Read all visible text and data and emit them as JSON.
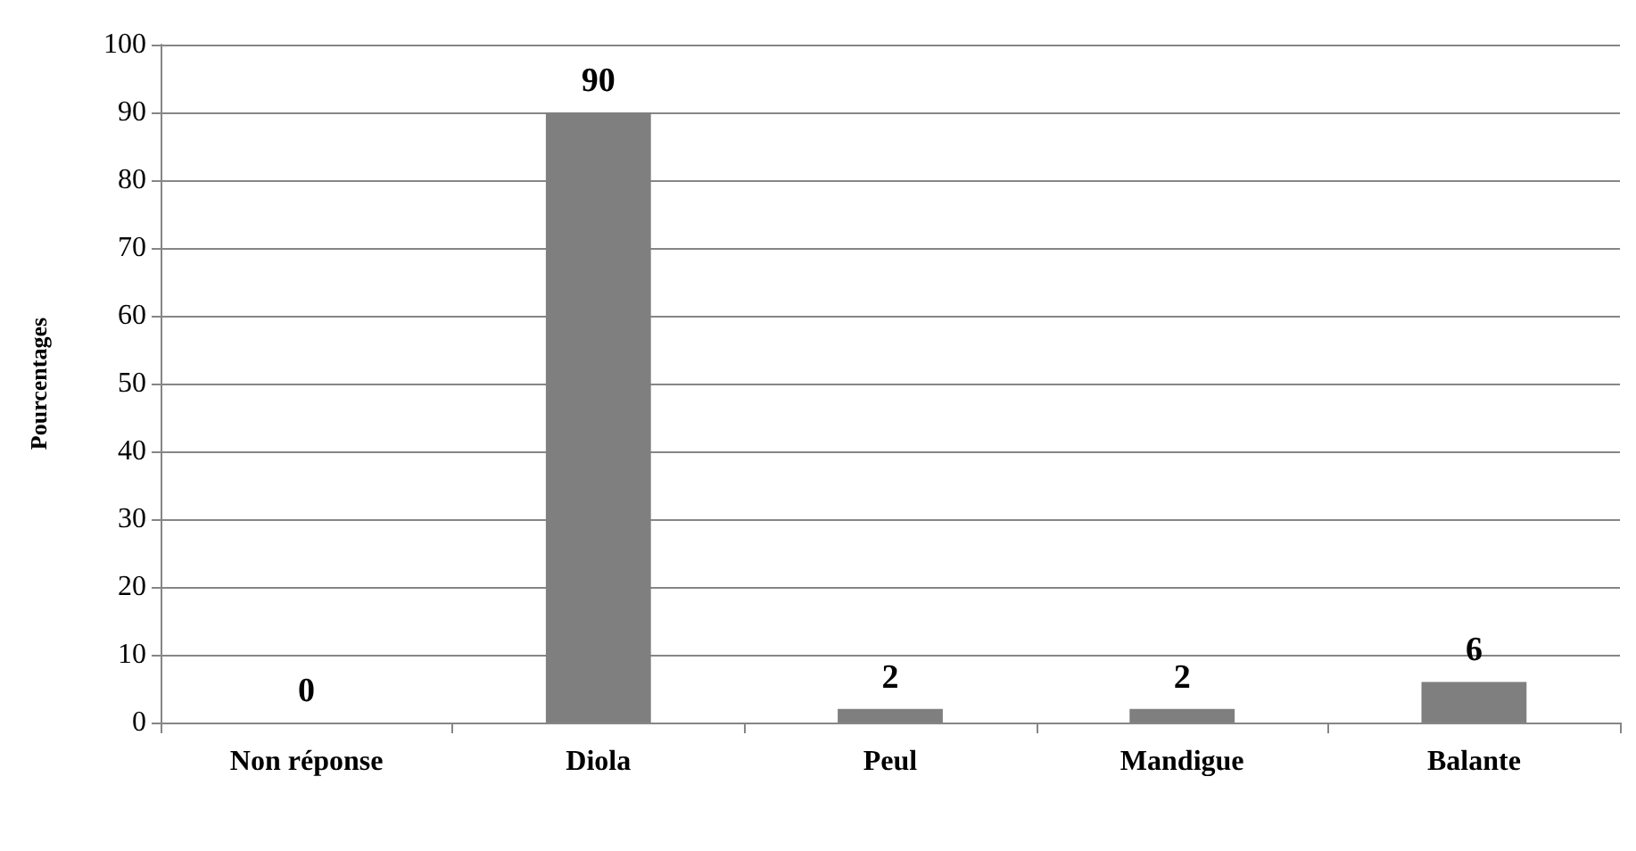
{
  "chart_data": {
    "type": "bar",
    "ylabel": "Pourcentages",
    "categories": [
      "Non réponse",
      "Diola",
      "Peul",
      "Mandigue",
      "Balante"
    ],
    "values": [
      0,
      90,
      2,
      2,
      6
    ],
    "color": "#7f7f7f",
    "ylim": [
      0,
      100
    ],
    "yticks": [
      0,
      10,
      20,
      30,
      40,
      50,
      60,
      70,
      80,
      90,
      100
    ],
    "grid": "y",
    "data_labels": true
  }
}
